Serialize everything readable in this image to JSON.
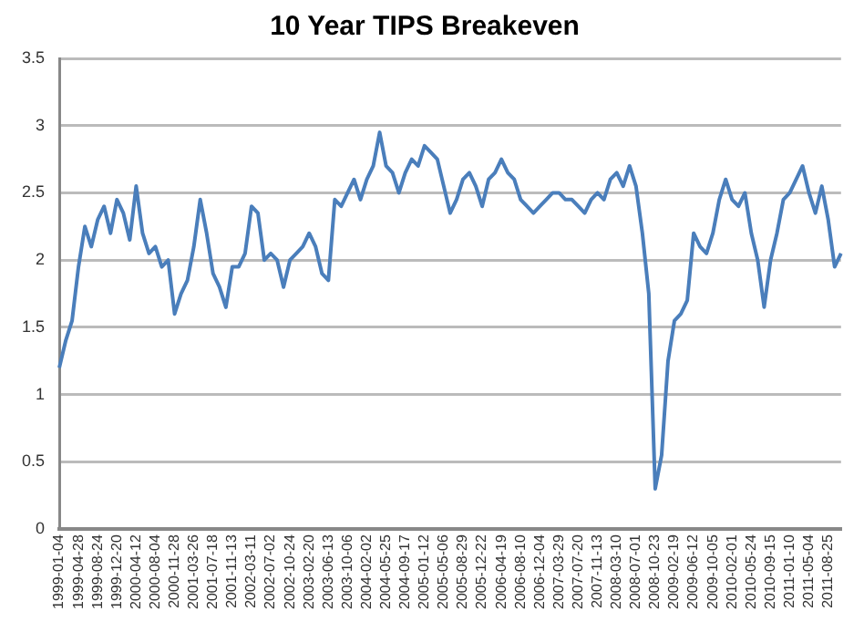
{
  "chart_data": {
    "type": "line",
    "title": "10 Year TIPS Breakeven",
    "categories": [
      "1999-01-04",
      null,
      null,
      "1999-04-28",
      null,
      null,
      "1999-08-24",
      null,
      null,
      "1999-12-20",
      null,
      null,
      "2000-04-12",
      null,
      null,
      "2000-08-04",
      null,
      null,
      "2000-11-28",
      null,
      null,
      "2001-03-26",
      null,
      null,
      "2001-07-18",
      null,
      null,
      "2001-11-13",
      null,
      null,
      "2002-03-11",
      null,
      null,
      "2002-07-02",
      null,
      null,
      "2002-10-24",
      null,
      null,
      "2003-02-20",
      null,
      null,
      "2003-06-13",
      null,
      null,
      "2003-10-06",
      null,
      null,
      "2004-02-02",
      null,
      null,
      "2004-05-25",
      null,
      null,
      "2004-09-17",
      null,
      null,
      "2005-01-12",
      null,
      null,
      "2005-05-06",
      null,
      null,
      "2005-08-29",
      null,
      null,
      "2005-12-22",
      null,
      null,
      "2006-04-19",
      null,
      null,
      "2006-08-10",
      null,
      null,
      "2006-12-04",
      null,
      null,
      "2007-03-29",
      null,
      null,
      "2007-07-20",
      null,
      null,
      "2007-11-13",
      null,
      null,
      "2008-03-10",
      null,
      null,
      "2008-07-01",
      null,
      null,
      "2008-10-23",
      null,
      null,
      "2009-02-19",
      null,
      null,
      "2009-06-12",
      null,
      null,
      "2009-10-05",
      null,
      null,
      "2010-02-01",
      null,
      null,
      "2010-05-24",
      null,
      null,
      "2010-09-15",
      null,
      null,
      "2011-01-10",
      null,
      null,
      "2011-05-04",
      null,
      null,
      "2011-08-25",
      null,
      null
    ],
    "series": [
      {
        "color": "#4a7ebb",
        "values": [
          1.2,
          1.4,
          1.55,
          1.95,
          2.25,
          2.1,
          2.3,
          2.4,
          2.2,
          2.45,
          2.35,
          2.15,
          2.55,
          2.2,
          2.05,
          2.1,
          1.95,
          2.0,
          1.6,
          1.75,
          1.85,
          2.1,
          2.45,
          2.2,
          1.9,
          1.8,
          1.65,
          1.95,
          1.95,
          2.05,
          2.4,
          2.35,
          2.0,
          2.05,
          2.0,
          1.8,
          2.0,
          2.05,
          2.1,
          2.2,
          2.1,
          1.9,
          1.85,
          2.45,
          2.4,
          2.5,
          2.6,
          2.45,
          2.6,
          2.7,
          2.95,
          2.7,
          2.65,
          2.5,
          2.65,
          2.75,
          2.7,
          2.85,
          2.8,
          2.75,
          2.55,
          2.35,
          2.45,
          2.6,
          2.65,
          2.55,
          2.4,
          2.6,
          2.65,
          2.75,
          2.65,
          2.6,
          2.45,
          2.4,
          2.35,
          2.4,
          2.45,
          2.5,
          2.5,
          2.45,
          2.45,
          2.4,
          2.35,
          2.45,
          2.5,
          2.45,
          2.6,
          2.65,
          2.55,
          2.7,
          2.55,
          2.2,
          1.75,
          0.3,
          0.55,
          1.25,
          1.55,
          1.6,
          1.7,
          2.2,
          2.1,
          2.05,
          2.2,
          2.45,
          2.6,
          2.45,
          2.4,
          2.5,
          2.2,
          2.0,
          1.65,
          2.0,
          2.2,
          2.45,
          2.5,
          2.6,
          2.7,
          2.5,
          2.35,
          2.55,
          2.3,
          1.95,
          2.05
        ]
      }
    ],
    "ylim": [
      0,
      3.5
    ],
    "yticks": [
      0,
      0.5,
      1,
      1.5,
      2,
      2.5,
      3,
      3.5
    ],
    "grid": "y",
    "marker": "none",
    "line_style": "solid"
  }
}
